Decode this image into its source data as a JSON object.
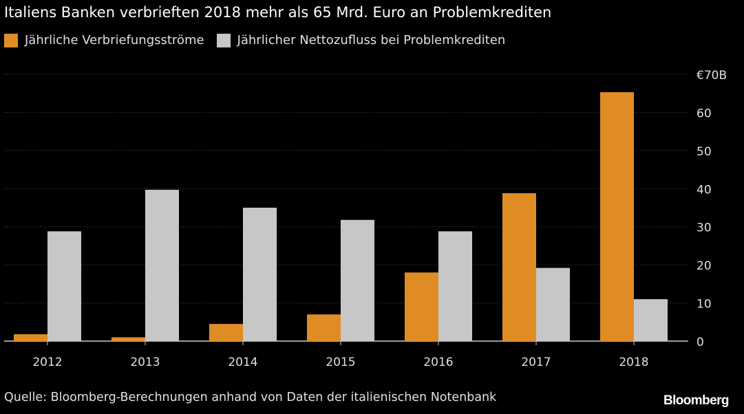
{
  "title": "Italiens Banken verbrieften 2018 mehr als 65 Mrd. Euro an Problemkrediten",
  "source": "Quelle: Bloomberg-Berechnungen anhand von Daten der italienischen Notenbank",
  "logo": "Bloomberg",
  "colors": {
    "background": "#000000",
    "orange": "#e08c25",
    "gray": "#c7c7c7",
    "grid": "#444444",
    "text": "#e0e0e0"
  },
  "chart_data": {
    "type": "bar",
    "categories": [
      "2012",
      "2013",
      "2014",
      "2015",
      "2016",
      "2017",
      "2018"
    ],
    "series": [
      {
        "name": "Jährliche Verbriefungsströme",
        "color": "#e08c25",
        "values": [
          1.8,
          1.0,
          4.5,
          7.0,
          18.0,
          38.8,
          65.3
        ]
      },
      {
        "name": "Jährlicher Nettozufluss bei Problemkrediten",
        "color": "#c7c7c7",
        "values": [
          28.8,
          39.7,
          35.0,
          31.8,
          28.8,
          19.2,
          11.0
        ]
      }
    ],
    "ylim": [
      0,
      70
    ],
    "yticks": [
      0,
      10,
      20,
      30,
      40,
      50,
      60,
      70
    ],
    "ytick_labels": [
      "0",
      "10",
      "20",
      "30",
      "40",
      "50",
      "60",
      "€70B"
    ],
    "y_axis_position": "right",
    "grid": true,
    "legend_position": "top-left"
  }
}
